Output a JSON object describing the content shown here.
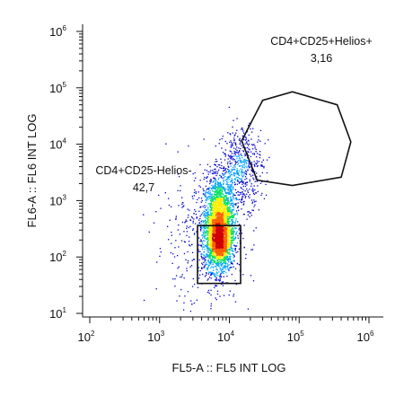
{
  "chart_data": {
    "type": "scatter",
    "subtype": "flow-cytometry-density-dot-plot",
    "xlabel": "FL5-A :: FL5 INT LOG",
    "ylabel": "FL6-A :: FL6 INT LOG",
    "x_scale": "log",
    "y_scale": "log",
    "xlim": [
      100,
      1000000
    ],
    "ylim": [
      10,
      1000000
    ],
    "x_ticks": [
      {
        "base": "10",
        "exp": "2",
        "value": 100
      },
      {
        "base": "10",
        "exp": "3",
        "value": 1000
      },
      {
        "base": "10",
        "exp": "4",
        "value": 10000
      },
      {
        "base": "10",
        "exp": "5",
        "value": 100000
      },
      {
        "base": "10",
        "exp": "6",
        "value": 1000000
      }
    ],
    "y_ticks": [
      {
        "base": "10",
        "exp": "1",
        "value": 10
      },
      {
        "base": "10",
        "exp": "2",
        "value": 100
      },
      {
        "base": "10",
        "exp": "3",
        "value": 1000
      },
      {
        "base": "10",
        "exp": "4",
        "value": 10000
      },
      {
        "base": "10",
        "exp": "5",
        "value": 100000
      },
      {
        "base": "10",
        "exp": "6",
        "value": 1000000
      }
    ],
    "colormap": [
      "#0000cc",
      "#00a0ff",
      "#00e060",
      "#ffee00",
      "#ff6000",
      "#d00000"
    ],
    "populations": [
      {
        "center": [
          7000,
          400
        ],
        "spread": [
          0.11,
          0.42
        ],
        "count": 2600
      },
      {
        "center": [
          7000,
          180
        ],
        "spread": [
          0.09,
          0.22
        ],
        "count": 900
      },
      {
        "center": [
          15000,
          4000
        ],
        "spread": [
          0.15,
          0.35
        ],
        "count": 520
      },
      {
        "center": [
          4000,
          200
        ],
        "spread": [
          0.35,
          0.6
        ],
        "count": 350
      }
    ],
    "gates": [
      {
        "name": "CD4+CD25-Helios-",
        "value": "42,7",
        "shape": "rectangle",
        "x_range": [
          3500,
          14500
        ],
        "y_range": [
          34,
          360
        ]
      },
      {
        "name": "CD4+CD25+Helios+",
        "value": "3,16",
        "shape": "polygon",
        "vertices": [
          [
            15000,
            11500
          ],
          [
            30000,
            60000
          ],
          [
            80000,
            85000
          ],
          [
            350000,
            50000
          ],
          [
            550000,
            11000
          ],
          [
            400000,
            2600
          ],
          [
            80000,
            1850
          ],
          [
            25000,
            2300
          ]
        ]
      }
    ]
  }
}
